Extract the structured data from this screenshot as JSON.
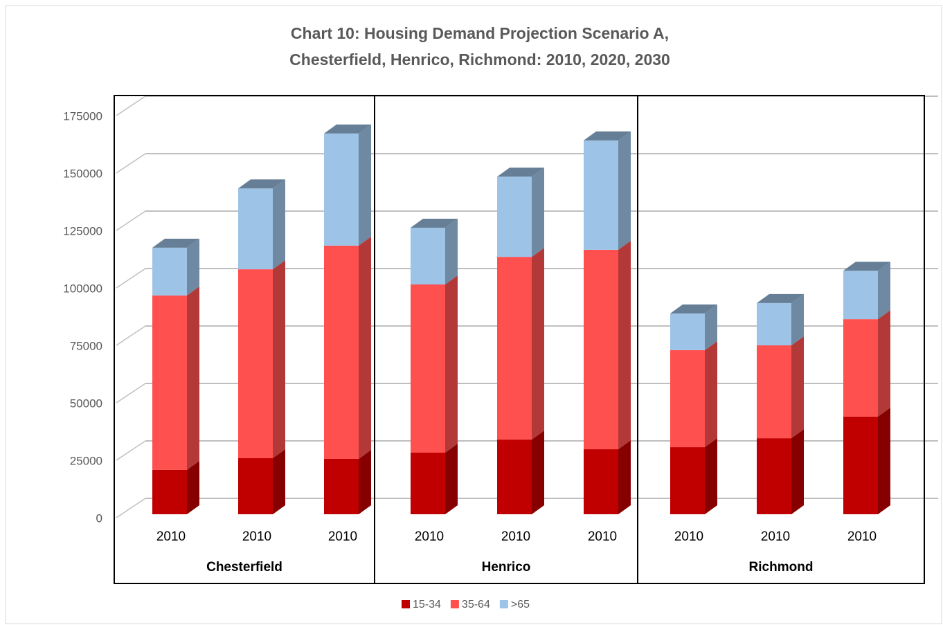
{
  "chart_data": {
    "type": "bar3d_stacked",
    "title": [
      "Chart 10: Housing Demand Projection Scenario A,",
      "Chesterfield, Henrico, Richmond: 2010, 2020, 2030"
    ],
    "groups": [
      "Chesterfield",
      "Henrico",
      "Richmond"
    ],
    "categories": [
      "2010",
      "2010",
      "2010",
      "2010",
      "2010",
      "2010",
      "2010",
      "2010",
      "2010"
    ],
    "series": [
      {
        "name": "15-34",
        "color": "#c00000",
        "values": [
          19300,
          24400,
          24100,
          26800,
          32500,
          28300,
          29200,
          33100,
          42500
        ]
      },
      {
        "name": "35-64",
        "color": "#ff5050",
        "values": [
          75900,
          82200,
          92800,
          73200,
          79500,
          86800,
          42200,
          40400,
          42400
        ]
      },
      {
        "name": ">65",
        "color": "#9dc3e6",
        "values": [
          20800,
          35200,
          48800,
          24700,
          34900,
          47600,
          16000,
          18400,
          21100
        ]
      }
    ],
    "ylim": [
      0,
      175000
    ],
    "yticks": [
      0,
      25000,
      50000,
      75000,
      100000,
      125000,
      150000,
      175000
    ],
    "grid": true
  }
}
